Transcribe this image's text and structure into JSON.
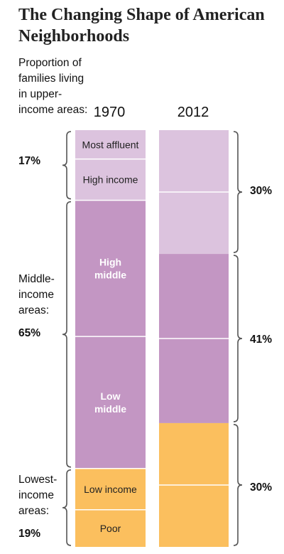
{
  "title": "The Changing Shape of American Neighborhoods",
  "intro_text": "Proportion of families living in upper-income areas:",
  "colors": {
    "upper": "#dcc3de",
    "middle": "#c396c3",
    "lowest": "#fbbf5e",
    "bracket": "#555555"
  },
  "chart_data": {
    "type": "bar",
    "categories": [
      "1970",
      "2012"
    ],
    "series": [
      {
        "name": "Most affluent",
        "values": [
          7,
          null
        ]
      },
      {
        "name": "High income",
        "values": [
          10,
          null
        ]
      },
      {
        "name": "High middle",
        "values": [
          33,
          null
        ]
      },
      {
        "name": "Low middle",
        "values": [
          32,
          null
        ]
      },
      {
        "name": "Low income",
        "values": [
          10,
          null
        ]
      },
      {
        "name": "Poor",
        "values": [
          9,
          null
        ]
      }
    ],
    "groups": [
      {
        "label": "upper-income areas",
        "values": [
          17,
          30
        ]
      },
      {
        "label": "Middle-income areas",
        "values": [
          65,
          41
        ]
      },
      {
        "label": "Lowest-income areas",
        "values": [
          19,
          30
        ]
      }
    ],
    "segment_labels_1970": [
      "Most affluent",
      "High income",
      "High middle",
      "Low middle",
      "Low income",
      "Poor"
    ],
    "stacking": "stacked-100",
    "ylim": [
      0,
      101
    ]
  },
  "labels": {
    "middle_text": "Middle-income areas:",
    "lowest_text": "Lowest-income areas:",
    "left_pcts": [
      "17%",
      "65%",
      "19%"
    ],
    "right_pcts": [
      "30%",
      "41%",
      "30%"
    ]
  }
}
